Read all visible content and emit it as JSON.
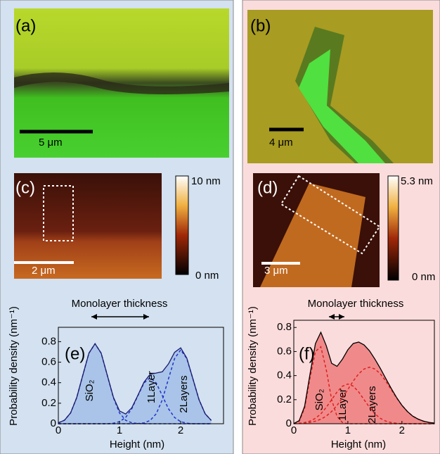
{
  "panels": [
    {
      "label": "(a)",
      "scale_bar": "5 μm"
    },
    {
      "label": "(b)",
      "scale_bar": "4 μm"
    },
    {
      "label": "(c)",
      "scale_bar": "2 μm",
      "colorbar_max": "10 nm",
      "colorbar_min": "0 nm"
    },
    {
      "label": "(d)",
      "scale_bar": "3 μm",
      "colorbar_max": "5.3 nm",
      "colorbar_min": "0 nm"
    }
  ],
  "chart_data": [
    {
      "type": "line",
      "title": "(e)",
      "annotation": "Monolayer thickness",
      "xlabel": "Height (nm)",
      "ylabel": "Probability density (nm⁻¹)",
      "xlim": [
        0,
        2.7
      ],
      "ylim": [
        0,
        0.94
      ],
      "xticks": [
        0,
        1,
        2
      ],
      "yticks": [
        0,
        0.2,
        0.4,
        0.6,
        0.8
      ],
      "fill": "#a9c4e8",
      "x": [
        0,
        0.1,
        0.2,
        0.3,
        0.4,
        0.5,
        0.6,
        0.7,
        0.8,
        0.9,
        1.0,
        1.1,
        1.2,
        1.3,
        1.4,
        1.5,
        1.6,
        1.7,
        1.8,
        1.9,
        2.0,
        2.1,
        2.2,
        2.3,
        2.4,
        2.5
      ],
      "series": [
        {
          "name": "SiO₂",
          "color": "#2233cc",
          "values": [
            0.009,
            0.034,
            0.105,
            0.254,
            0.473,
            0.688,
            0.78,
            0.688,
            0.473,
            0.254,
            0.105,
            0.034,
            0.009,
            0.002,
            0,
            0,
            0,
            0,
            0,
            0,
            0,
            0,
            0,
            0,
            0,
            0
          ]
        },
        {
          "name": "1Layer",
          "color": "#2233cc",
          "values": [
            0,
            0,
            0,
            0,
            0,
            0,
            0,
            0,
            0,
            0.005,
            0.02,
            0.061,
            0.146,
            0.273,
            0.397,
            0.45,
            0.397,
            0.273,
            0.146,
            0.061,
            0.02,
            0.005,
            0,
            0,
            0,
            0
          ]
        },
        {
          "name": "2Layers",
          "color": "#2233cc",
          "values": [
            0,
            0,
            0,
            0,
            0,
            0,
            0,
            0,
            0,
            0,
            0,
            0,
            0,
            0.002,
            0.008,
            0.032,
            0.097,
            0.234,
            0.437,
            0.635,
            0.72,
            0.635,
            0.437,
            0.234,
            0.097,
            0.032
          ]
        },
        {
          "color": "#1a1a6e",
          "values": [
            0.009,
            0.034,
            0.105,
            0.254,
            0.473,
            0.688,
            0.78,
            0.688,
            0.473,
            0.259,
            0.125,
            0.095,
            0.155,
            0.277,
            0.405,
            0.482,
            0.494,
            0.507,
            0.583,
            0.696,
            0.74,
            0.64,
            0.437,
            0.234,
            0.097,
            0.032
          ]
        }
      ]
    },
    {
      "type": "line",
      "title": "(f)",
      "annotation": "Monolayer thickness",
      "xlabel": "Height (nm)",
      "ylabel": "Probability density (nm⁻¹)",
      "xlim": [
        0,
        2.6
      ],
      "ylim": [
        0,
        0.86
      ],
      "xticks": [
        0,
        1,
        2
      ],
      "yticks": [
        0,
        0.2,
        0.4,
        0.6,
        0.8
      ],
      "fill": "#f08a8a",
      "x": [
        0,
        0.1,
        0.2,
        0.3,
        0.4,
        0.5,
        0.6,
        0.7,
        0.8,
        0.9,
        1.0,
        1.1,
        1.2,
        1.3,
        1.4,
        1.5,
        1.6,
        1.7,
        1.8,
        1.9,
        2.0,
        2.1,
        2.2,
        2.3,
        2.4,
        2.5,
        2.6
      ],
      "series": [
        {
          "name": "SiO₂",
          "color": "#e02020",
          "values": [
            0,
            0.02,
            0.13,
            0.38,
            0.6,
            0.64,
            0.45,
            0.2,
            0.06,
            0.01,
            0,
            0,
            0,
            0,
            0,
            0,
            0,
            0,
            0,
            0,
            0,
            0,
            0,
            0,
            0,
            0,
            0
          ]
        },
        {
          "name": "1Layer",
          "color": "#e02020",
          "values": [
            0.001,
            0.004,
            0.01,
            0.022,
            0.045,
            0.082,
            0.136,
            0.2,
            0.264,
            0.312,
            0.33,
            0.312,
            0.264,
            0.2,
            0.136,
            0.082,
            0.045,
            0.022,
            0.01,
            0.004,
            0,
            0,
            0,
            0,
            0,
            0,
            0
          ]
        },
        {
          "name": "2Layers",
          "color": "#e02020",
          "values": [
            0.001,
            0.002,
            0.005,
            0.011,
            0.021,
            0.038,
            0.063,
            0.102,
            0.153,
            0.215,
            0.285,
            0.355,
            0.415,
            0.455,
            0.47,
            0.455,
            0.415,
            0.355,
            0.285,
            0.215,
            0.153,
            0.102,
            0.063,
            0.038,
            0.021,
            0.011,
            0.005
          ]
        },
        {
          "color": "#000000",
          "values": [
            0.002,
            0.026,
            0.145,
            0.413,
            0.666,
            0.76,
            0.649,
            0.502,
            0.477,
            0.537,
            0.615,
            0.667,
            0.679,
            0.655,
            0.606,
            0.537,
            0.46,
            0.377,
            0.295,
            0.219,
            0.153,
            0.102,
            0.063,
            0.038,
            0.021,
            0.011,
            0.005
          ]
        }
      ]
    }
  ]
}
